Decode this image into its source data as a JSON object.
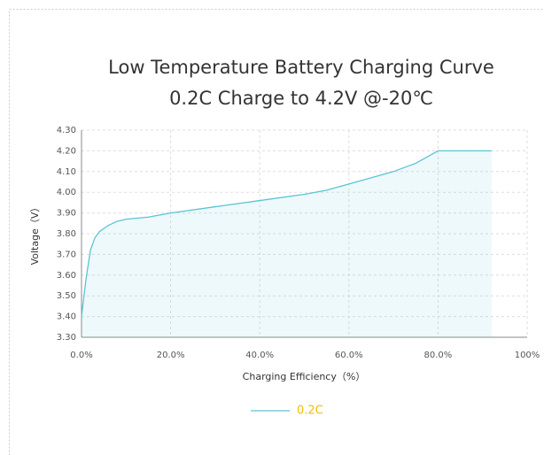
{
  "chart_data": {
    "type": "line",
    "title": [
      "Low Temperature Battery Charging Curve",
      "0.2C Charge to 4.2V @-20℃"
    ],
    "x_label": "Charging Efficiency（%）",
    "y_label": "Voltage（V）",
    "x": [
      0,
      1,
      2,
      3,
      4,
      6,
      8,
      10,
      15,
      20,
      30,
      40,
      50,
      55,
      60,
      70,
      75,
      80,
      92
    ],
    "series": [
      {
        "name": "0.2C",
        "color": "#5bc4d4",
        "values": [
          3.4,
          3.58,
          3.72,
          3.78,
          3.81,
          3.84,
          3.86,
          3.87,
          3.88,
          3.9,
          3.93,
          3.96,
          3.99,
          4.01,
          4.04,
          4.1,
          4.14,
          4.2,
          4.2
        ]
      }
    ],
    "area": true,
    "legend_text_color": "#f0c000",
    "xlim": [
      0,
      100
    ],
    "xticks": [
      {
        "value": 0,
        "label": "0.0%"
      },
      {
        "value": 20,
        "label": "20.0%"
      },
      {
        "value": 40,
        "label": "40.0%"
      },
      {
        "value": 60,
        "label": "60.0%"
      },
      {
        "value": 80,
        "label": "80.0%"
      },
      {
        "value": 100,
        "label": "100%"
      }
    ],
    "ylim": [
      3.3,
      4.3
    ],
    "yticks": [
      {
        "value": 3.3,
        "label": "3.30"
      },
      {
        "value": 3.4,
        "label": "3.40"
      },
      {
        "value": 3.5,
        "label": "3.50"
      },
      {
        "value": 3.6,
        "label": "3.60"
      },
      {
        "value": 3.7,
        "label": "3.70"
      },
      {
        "value": 3.8,
        "label": "3.80"
      },
      {
        "value": 3.9,
        "label": "3.90"
      },
      {
        "value": 4.0,
        "label": "4.00"
      },
      {
        "value": 4.1,
        "label": "4.10"
      },
      {
        "value": 4.2,
        "label": "4.20"
      },
      {
        "value": 4.3,
        "label": "4.30"
      }
    ],
    "grid": true
  }
}
